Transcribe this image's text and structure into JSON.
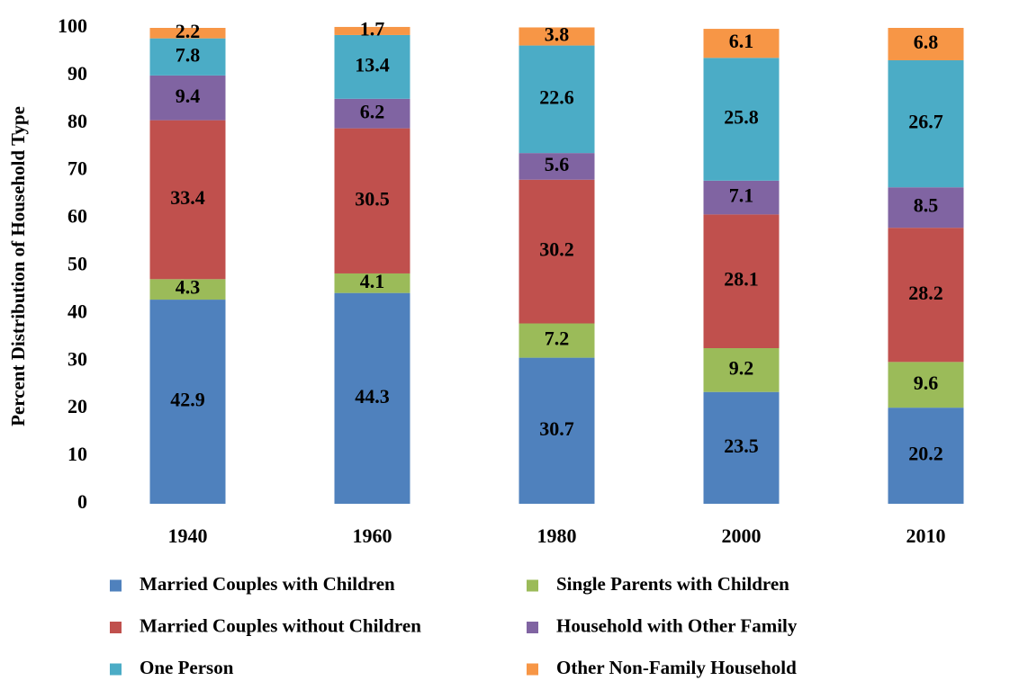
{
  "chart_data": {
    "type": "stacked_bar",
    "y_label": "Percent Distribution of Household Type",
    "categories": [
      "1940",
      "1960",
      "1980",
      "2000",
      "2010"
    ],
    "series": [
      {
        "name": "Married Couples with Children",
        "color": "#4f81bd",
        "values": [
          42.9,
          44.3,
          30.7,
          23.5,
          20.2
        ]
      },
      {
        "name": "Single Parents with Children",
        "color": "#9bbb59",
        "values": [
          4.3,
          4.1,
          7.2,
          9.2,
          9.6
        ]
      },
      {
        "name": "Married Couples without Children",
        "color": "#c0504d",
        "values": [
          33.4,
          30.5,
          30.2,
          28.1,
          28.2
        ]
      },
      {
        "name": "Household with Other Family",
        "color": "#8064a2",
        "values": [
          9.4,
          6.2,
          5.6,
          7.1,
          8.5
        ]
      },
      {
        "name": "One Person",
        "color": "#4bacc6",
        "values": [
          7.8,
          13.4,
          22.6,
          25.8,
          26.7
        ]
      },
      {
        "name": "Other Non-Family Household",
        "color": "#f79646",
        "values": [
          2.2,
          1.7,
          3.8,
          6.1,
          6.8
        ]
      }
    ],
    "ylim": [
      0,
      100
    ],
    "yticks": [
      0,
      10,
      20,
      30,
      40,
      50,
      60,
      70,
      80,
      90,
      100
    ],
    "grid": false,
    "legend": "bottom"
  }
}
